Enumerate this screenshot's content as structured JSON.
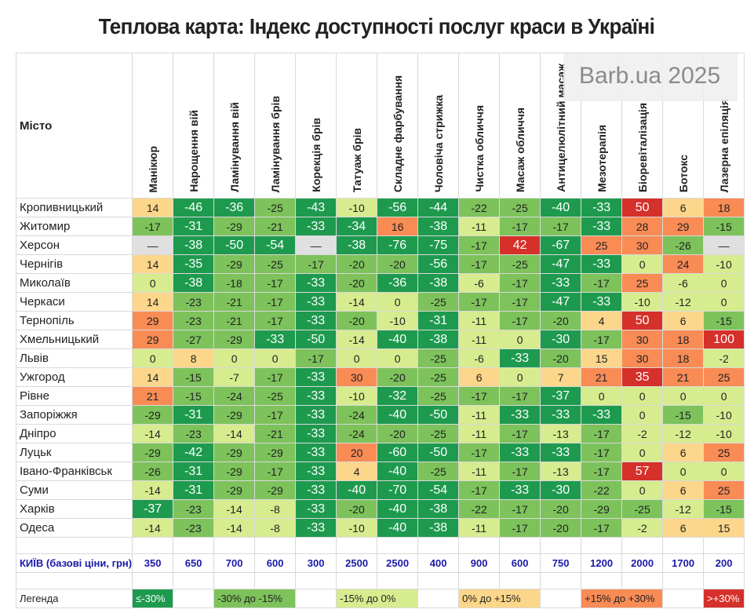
{
  "chart_data": {
    "type": "heatmap",
    "title": "Теплова карта: Індекс доступності послуг краси в Україні",
    "corner_label": "Місто",
    "columns": [
      "Манікюр",
      "Нарощення вій",
      "Ламінування вій",
      "Ламінування брів",
      "Корекція брів",
      "Татуаж брів",
      "Складне фарбування",
      "Чоловіча стрижка",
      "Чистка обличчя",
      "Масаж обличчя",
      "Антицелюлітний масаж",
      "Мезотерапія",
      "Біоревіталізація",
      "Ботокс",
      "Лазерна епіляція"
    ],
    "rows": [
      {
        "city": "Кропивницький",
        "values": [
          14,
          -46,
          -36,
          -25,
          -43,
          -10,
          -56,
          -44,
          -22,
          -25,
          -40,
          -33,
          50,
          6,
          18
        ]
      },
      {
        "city": "Житомир",
        "values": [
          -17,
          -31,
          -29,
          -21,
          -33,
          -34,
          16,
          -38,
          -11,
          -17,
          -17,
          -33,
          28,
          29,
          -15
        ]
      },
      {
        "city": "Херсон",
        "values": [
          null,
          -38,
          -50,
          -54,
          null,
          -38,
          -76,
          -75,
          -17,
          42,
          -67,
          25,
          30,
          -26,
          null
        ]
      },
      {
        "city": "Чернігів",
        "values": [
          14,
          -35,
          -29,
          -25,
          -17,
          -20,
          -20,
          -56,
          -17,
          -25,
          -47,
          -33,
          0,
          24,
          -10
        ]
      },
      {
        "city": "Миколаїв",
        "values": [
          0,
          -38,
          -18,
          -17,
          -33,
          -20,
          -36,
          -38,
          -6,
          -17,
          -33,
          -17,
          25,
          -6,
          0
        ]
      },
      {
        "city": "Черкаси",
        "values": [
          14,
          -23,
          -21,
          -17,
          -33,
          -14,
          0,
          -25,
          -17,
          -17,
          -47,
          -33,
          -10,
          -12,
          0
        ]
      },
      {
        "city": "Тернопіль",
        "values": [
          29,
          -23,
          -21,
          -17,
          -33,
          -20,
          -10,
          -31,
          -11,
          -17,
          -20,
          4,
          50,
          6,
          -15
        ]
      },
      {
        "city": "Хмельницький",
        "values": [
          29,
          -27,
          -29,
          -33,
          -50,
          -14,
          -40,
          -38,
          -11,
          0,
          -30,
          -17,
          30,
          18,
          100
        ]
      },
      {
        "city": "Львів",
        "values": [
          0,
          8,
          0,
          0,
          -17,
          0,
          0,
          -25,
          -6,
          -33,
          -20,
          15,
          30,
          18,
          -2
        ]
      },
      {
        "city": "Ужгород",
        "values": [
          14,
          -15,
          -7,
          -17,
          -33,
          30,
          -20,
          -25,
          6,
          0,
          7,
          21,
          35,
          21,
          25
        ]
      },
      {
        "city": "Рівне",
        "values": [
          21,
          -15,
          -24,
          -25,
          -33,
          -10,
          -32,
          -25,
          -17,
          -17,
          -37,
          0,
          0,
          0,
          0
        ]
      },
      {
        "city": "Запоріжжя",
        "values": [
          -29,
          -31,
          -29,
          -17,
          -33,
          -24,
          -40,
          -50,
          -11,
          -33,
          -33,
          -33,
          0,
          -15,
          -10
        ]
      },
      {
        "city": "Дніпро",
        "values": [
          -14,
          -23,
          -14,
          -21,
          -33,
          -24,
          -20,
          -25,
          -11,
          -17,
          -13,
          -17,
          -2,
          -12,
          -10
        ]
      },
      {
        "city": "Луцьк",
        "values": [
          -29,
          -42,
          -29,
          -29,
          -33,
          20,
          -60,
          -50,
          -17,
          -33,
          -33,
          -17,
          0,
          6,
          25
        ]
      },
      {
        "city": "Івано-Франківськ",
        "values": [
          -26,
          -31,
          -29,
          -17,
          -33,
          4,
          -40,
          -25,
          -11,
          -17,
          -13,
          -17,
          57,
          0,
          0
        ]
      },
      {
        "city": "Суми",
        "values": [
          -14,
          -31,
          -29,
          -29,
          -33,
          -40,
          -70,
          -54,
          -17,
          -33,
          -30,
          -22,
          0,
          6,
          25
        ]
      },
      {
        "city": "Харків",
        "values": [
          -37,
          -23,
          -14,
          -8,
          -33,
          -20,
          -40,
          -38,
          -22,
          -17,
          -20,
          -29,
          -25,
          -12,
          -15
        ]
      },
      {
        "city": "Одеса",
        "values": [
          -14,
          -23,
          -14,
          -8,
          -33,
          -10,
          -40,
          -38,
          -11,
          -17,
          -20,
          -17,
          -2,
          6,
          15
        ]
      }
    ],
    "missing_symbol": "—",
    "base_row": {
      "label": "КИЇВ (базові ціни, грн)",
      "values": [
        350,
        650,
        700,
        600,
        300,
        2500,
        2500,
        400,
        900,
        600,
        750,
        1200,
        2000,
        1700,
        200
      ]
    },
    "legend": {
      "label": "Легенда",
      "items": [
        {
          "text": "≤-30%",
          "color": "#1e9a4f"
        },
        {
          "text": "-30% до -15%",
          "color": "#7dc25b"
        },
        {
          "text": "-15% до 0%",
          "color": "#d7ec8f"
        },
        {
          "text": "0% до +15%",
          "color": "#fcd68a"
        },
        {
          "text": "+15% до +30%",
          "color": "#f98b55"
        },
        {
          "text": ">+30%",
          "color": "#d6302a"
        }
      ],
      "missing_color": "#e0e0e0"
    }
  },
  "watermark": "Barb.ua 2025"
}
